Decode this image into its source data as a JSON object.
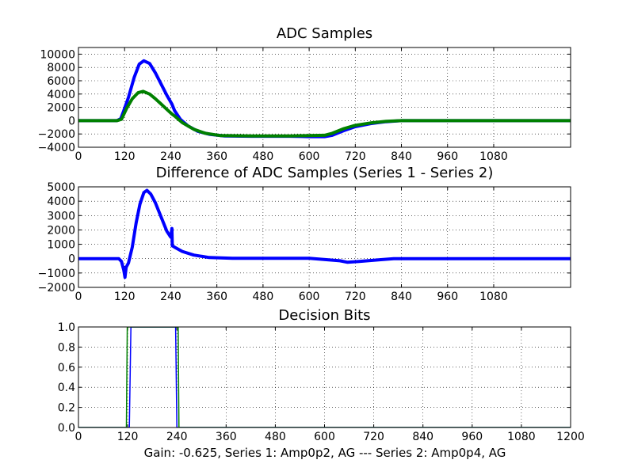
{
  "chart_data": [
    {
      "type": "line",
      "title": "ADC Samples",
      "xlim": [
        0,
        1280
      ],
      "ylim": [
        -4000,
        11000
      ],
      "xticks": [
        0,
        120,
        240,
        360,
        480,
        600,
        720,
        840,
        960,
        1080
      ],
      "xtick_labels": [
        "0",
        "120",
        "240",
        "360",
        "480",
        "600",
        "720",
        "840",
        "960",
        "1080"
      ],
      "yticks": [
        -4000,
        -2000,
        0,
        2000,
        4000,
        6000,
        8000,
        10000
      ],
      "ytick_labels": [
        "−4000",
        "−2000",
        "0",
        "2000",
        "4000",
        "6000",
        "8000",
        "10000"
      ],
      "grid": true,
      "series": [
        {
          "name": "Series 1",
          "color": "#0000ff",
          "points": [
            [
              0,
              0
            ],
            [
              100,
              0
            ],
            [
              110,
              300
            ],
            [
              118,
              1500
            ],
            [
              130,
              3500
            ],
            [
              145,
              6500
            ],
            [
              158,
              8500
            ],
            [
              170,
              9000
            ],
            [
              185,
              8600
            ],
            [
              200,
              7200
            ],
            [
              215,
              5500
            ],
            [
              230,
              3800
            ],
            [
              243,
              2500
            ],
            [
              250,
              1500
            ],
            [
              265,
              200
            ],
            [
              285,
              -800
            ],
            [
              310,
              -1600
            ],
            [
              340,
              -2050
            ],
            [
              380,
              -2300
            ],
            [
              450,
              -2350
            ],
            [
              550,
              -2350
            ],
            [
              600,
              -2400
            ],
            [
              640,
              -2400
            ],
            [
              660,
              -2200
            ],
            [
              690,
              -1500
            ],
            [
              720,
              -900
            ],
            [
              760,
              -450
            ],
            [
              800,
              -150
            ],
            [
              840,
              0
            ],
            [
              1280,
              0
            ]
          ]
        },
        {
          "name": "Series 2",
          "color": "#008000",
          "points": [
            [
              0,
              0
            ],
            [
              100,
              0
            ],
            [
              112,
              200
            ],
            [
              125,
              1800
            ],
            [
              140,
              3300
            ],
            [
              155,
              4200
            ],
            [
              168,
              4400
            ],
            [
              185,
              4000
            ],
            [
              200,
              3300
            ],
            [
              215,
              2500
            ],
            [
              228,
              1800
            ],
            [
              243,
              1000
            ],
            [
              250,
              700
            ],
            [
              270,
              -300
            ],
            [
              300,
              -1300
            ],
            [
              330,
              -1900
            ],
            [
              370,
              -2250
            ],
            [
              450,
              -2300
            ],
            [
              550,
              -2300
            ],
            [
              600,
              -2250
            ],
            [
              640,
              -2200
            ],
            [
              660,
              -1900
            ],
            [
              690,
              -1200
            ],
            [
              720,
              -700
            ],
            [
              760,
              -350
            ],
            [
              800,
              -100
            ],
            [
              840,
              0
            ],
            [
              1280,
              0
            ]
          ]
        }
      ]
    },
    {
      "type": "line",
      "title": "Difference of ADC Samples (Series 1 - Series 2)",
      "xlim": [
        0,
        1280
      ],
      "ylim": [
        -2000,
        5000
      ],
      "xticks": [
        0,
        120,
        240,
        360,
        480,
        600,
        720,
        840,
        960,
        1080
      ],
      "xtick_labels": [
        "0",
        "120",
        "240",
        "360",
        "480",
        "600",
        "720",
        "840",
        "960",
        "1080"
      ],
      "yticks": [
        -2000,
        -1000,
        0,
        1000,
        2000,
        3000,
        4000,
        5000
      ],
      "ytick_labels": [
        "−2000",
        "−1000",
        "0",
        "1000",
        "2000",
        "3000",
        "4000",
        "5000"
      ],
      "grid": true,
      "series": [
        {
          "name": "Series 1 - Series 2",
          "color": "#0000ff",
          "points": [
            [
              0,
              0
            ],
            [
              105,
              0
            ],
            [
              112,
              -200
            ],
            [
              118,
              -800
            ],
            [
              121,
              -1300
            ],
            [
              124,
              -600
            ],
            [
              130,
              -300
            ],
            [
              140,
              800
            ],
            [
              150,
              2500
            ],
            [
              160,
              3800
            ],
            [
              170,
              4600
            ],
            [
              178,
              4750
            ],
            [
              188,
              4500
            ],
            [
              200,
              3900
            ],
            [
              215,
              2900
            ],
            [
              230,
              1900
            ],
            [
              240,
              1500
            ],
            [
              243,
              2100
            ],
            [
              244,
              900
            ],
            [
              250,
              800
            ],
            [
              270,
              500
            ],
            [
              300,
              250
            ],
            [
              340,
              80
            ],
            [
              400,
              30
            ],
            [
              600,
              30
            ],
            [
              680,
              -150
            ],
            [
              700,
              -250
            ],
            [
              730,
              -200
            ],
            [
              780,
              -80
            ],
            [
              820,
              0
            ],
            [
              1280,
              0
            ]
          ]
        }
      ]
    },
    {
      "type": "line",
      "title": "Decision Bits",
      "xlim": [
        0,
        1200
      ],
      "ylim": [
        0,
        1
      ],
      "xticks": [
        0,
        120,
        240,
        360,
        480,
        600,
        720,
        840,
        960,
        1080,
        1200
      ],
      "xtick_labels": [
        "0",
        "120",
        "240",
        "360",
        "480",
        "600",
        "720",
        "840",
        "960",
        "1080",
        "1200"
      ],
      "yticks": [
        0,
        0.2,
        0.4,
        0.6,
        0.8,
        1.0
      ],
      "ytick_labels": [
        "0.0",
        "0.2",
        "0.4",
        "0.6",
        "0.8",
        "1.0"
      ],
      "grid": true,
      "series": [
        {
          "name": "Series 1",
          "color": "#0000ff",
          "points": [
            [
              0,
              0
            ],
            [
              124,
              0
            ],
            [
              128,
              1
            ],
            [
              237,
              1
            ],
            [
              240,
              0
            ],
            [
              1200,
              0
            ]
          ]
        },
        {
          "name": "Series 2",
          "color": "#008000",
          "points": [
            [
              0,
              0
            ],
            [
              117,
              0
            ],
            [
              119,
              1
            ],
            [
              243,
              1
            ],
            [
              245,
              0
            ],
            [
              1200,
              0
            ]
          ]
        }
      ]
    }
  ],
  "caption": "Gain: -0.625, Series 1: Amp0p2, AG --- Series 2: Amp0p4, AG"
}
